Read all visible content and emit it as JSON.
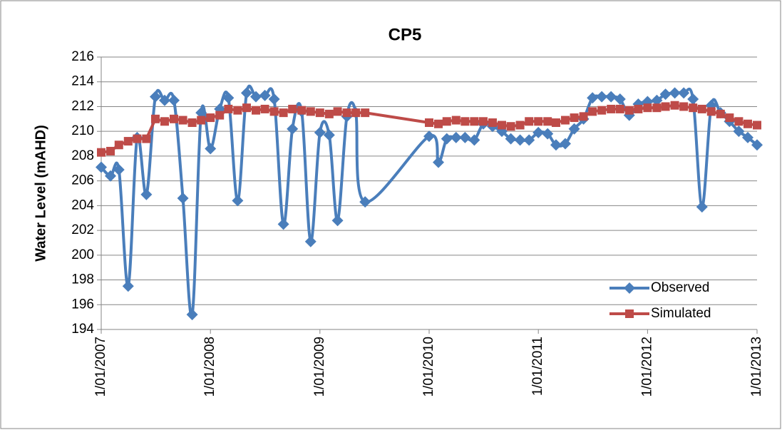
{
  "chart_data": {
    "type": "line",
    "title": "CP5",
    "ylabel": "Water Level (mAHD)",
    "x": [
      "2007-01-01",
      "2007-02-01",
      "2007-03-01",
      "2007-04-01",
      "2007-05-01",
      "2007-06-01",
      "2007-07-01",
      "2007-08-01",
      "2007-09-01",
      "2007-10-01",
      "2007-11-01",
      "2007-12-01",
      "2008-01-01",
      "2008-02-01",
      "2008-03-01",
      "2008-04-01",
      "2008-05-01",
      "2008-06-01",
      "2008-07-01",
      "2008-08-01",
      "2008-09-01",
      "2008-10-01",
      "2008-11-01",
      "2008-12-01",
      "2009-01-01",
      "2009-02-01",
      "2009-03-01",
      "2009-04-01",
      "2009-05-01",
      "2009-06-01",
      "2010-01-01",
      "2010-02-01",
      "2010-03-01",
      "2010-04-01",
      "2010-05-01",
      "2010-06-01",
      "2010-07-01",
      "2010-08-01",
      "2010-09-01",
      "2010-10-01",
      "2010-11-01",
      "2010-12-01",
      "2011-01-01",
      "2011-02-01",
      "2011-03-01",
      "2011-04-01",
      "2011-05-01",
      "2011-06-01",
      "2011-07-01",
      "2011-08-01",
      "2011-09-01",
      "2011-10-01",
      "2011-11-01",
      "2011-12-01",
      "2012-01-01",
      "2012-02-01",
      "2012-03-01",
      "2012-04-01",
      "2012-05-01",
      "2012-06-01",
      "2012-07-01",
      "2012-08-01",
      "2012-09-01",
      "2012-10-01",
      "2012-11-01",
      "2012-12-01",
      "2013-01-01"
    ],
    "series": [
      {
        "name": "Observed",
        "color": "#4a7ebb",
        "marker": "diamond",
        "smooth": true,
        "values": [
          207.1,
          206.4,
          206.9,
          197.5,
          209.5,
          204.9,
          212.8,
          212.5,
          212.5,
          204.6,
          195.2,
          211.5,
          208.6,
          211.8,
          212.7,
          204.4,
          213.1,
          212.8,
          212.9,
          212.6,
          202.5,
          210.2,
          211.6,
          201.1,
          209.9,
          209.7,
          202.8,
          211.2,
          211.5,
          204.3,
          209.6,
          207.5,
          209.4,
          209.5,
          209.5,
          209.3,
          210.6,
          210.4,
          210.0,
          209.4,
          209.3,
          209.3,
          209.9,
          209.8,
          208.9,
          209.0,
          210.2,
          211.0,
          212.7,
          212.8,
          212.8,
          212.6,
          211.3,
          212.2,
          212.4,
          212.5,
          213.0,
          213.1,
          213.1,
          212.6,
          203.9,
          212.1,
          211.5,
          210.8,
          210.0,
          209.5,
          208.9
        ]
      },
      {
        "name": "Simulated",
        "color": "#be4b48",
        "marker": "square",
        "smooth": false,
        "values": [
          208.3,
          208.4,
          208.9,
          209.2,
          209.4,
          209.4,
          211.0,
          210.8,
          211.0,
          210.9,
          210.7,
          210.9,
          211.1,
          211.3,
          211.8,
          211.7,
          211.9,
          211.7,
          211.8,
          211.6,
          211.5,
          211.8,
          211.7,
          211.6,
          211.5,
          211.4,
          211.6,
          211.5,
          211.5,
          211.5,
          210.7,
          210.6,
          210.8,
          210.9,
          210.8,
          210.8,
          210.8,
          210.7,
          210.5,
          210.4,
          210.5,
          210.8,
          210.8,
          210.8,
          210.7,
          210.9,
          211.1,
          211.2,
          211.6,
          211.7,
          211.8,
          211.8,
          211.7,
          211.8,
          211.9,
          211.9,
          212.0,
          212.1,
          212.0,
          211.9,
          211.8,
          211.6,
          211.4,
          211.1,
          210.8,
          210.6,
          210.5
        ]
      }
    ],
    "xlim": [
      "2007-01-01",
      "2013-01-01"
    ],
    "xticks": [
      {
        "value": "2007-01-01",
        "label": "1/01/2007"
      },
      {
        "value": "2008-01-01",
        "label": "1/01/2008"
      },
      {
        "value": "2009-01-01",
        "label": "1/01/2009"
      },
      {
        "value": "2010-01-01",
        "label": "1/01/2010"
      },
      {
        "value": "2011-01-01",
        "label": "1/01/2011"
      },
      {
        "value": "2012-01-01",
        "label": "1/01/2012"
      },
      {
        "value": "2013-01-01",
        "label": "1/01/2013"
      }
    ],
    "ylim": [
      194,
      216
    ],
    "yticks": [
      194,
      196,
      198,
      200,
      202,
      204,
      206,
      208,
      210,
      212,
      214,
      216
    ],
    "grid": true,
    "legend": "lower right"
  }
}
